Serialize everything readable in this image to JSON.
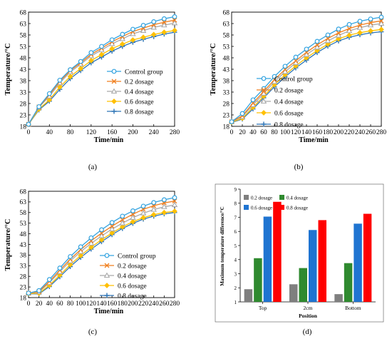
{
  "chart_data": [
    {
      "type": "line",
      "panel_label": "(a)",
      "xlabel": "Time/min",
      "ylabel": "Temperature/°C",
      "xlim": [
        0,
        280
      ],
      "ylim": [
        18,
        68
      ],
      "xticks": [
        0,
        40,
        80,
        120,
        160,
        200,
        240,
        280
      ],
      "yticks": [
        18,
        23,
        28,
        33,
        38,
        43,
        48,
        53,
        58,
        63,
        68
      ],
      "legend_position": "center-right",
      "x": [
        0,
        20,
        40,
        60,
        80,
        100,
        120,
        140,
        160,
        180,
        200,
        220,
        240,
        260,
        280
      ],
      "series": [
        {
          "name": "Control group",
          "marker": "circle",
          "color": "#33a3e0",
          "values": [
            18.9,
            26.6,
            32.3,
            38.2,
            42.8,
            46.4,
            50.3,
            53.0,
            55.9,
            58.3,
            60.5,
            62.2,
            63.8,
            65.1,
            66.0
          ]
        },
        {
          "name": "0.2 dosage",
          "marker": "x",
          "color": "#f07f1f",
          "values": [
            18.9,
            26.5,
            31.8,
            37.7,
            42.4,
            45.8,
            49.5,
            52.2,
            55.0,
            57.3,
            59.5,
            61.0,
            62.5,
            63.6,
            64.5
          ]
        },
        {
          "name": "0.4 dosage",
          "marker": "triangle",
          "color": "#a9a9a9",
          "values": [
            18.9,
            26.3,
            31.2,
            37.0,
            41.8,
            45.2,
            48.8,
            51.4,
            54.1,
            56.3,
            58.5,
            59.9,
            61.3,
            62.3,
            63.2
          ]
        },
        {
          "name": "0.6 dosage",
          "marker": "diamond",
          "color": "#ffc000",
          "values": [
            18.9,
            25.5,
            29.6,
            35.2,
            39.8,
            43.3,
            46.8,
            49.4,
            52.0,
            54.0,
            55.8,
            57.0,
            58.2,
            59.2,
            60.0
          ]
        },
        {
          "name": "0.8 dosage",
          "marker": "plus",
          "color": "#2e75b6",
          "values": [
            18.9,
            25.2,
            29.0,
            34.2,
            38.9,
            42.4,
            45.8,
            48.3,
            50.9,
            53.0,
            54.8,
            56.1,
            57.3,
            58.4,
            59.2
          ]
        }
      ]
    },
    {
      "type": "line",
      "panel_label": "(b)",
      "xlabel": "Time/min",
      "ylabel": "Temperature/°C",
      "xlim": [
        0,
        280
      ],
      "ylim": [
        18,
        68
      ],
      "xticks": [
        0,
        20,
        40,
        60,
        80,
        100,
        120,
        140,
        160,
        180,
        200,
        220,
        240,
        260,
        280
      ],
      "yticks": [
        18,
        23,
        28,
        33,
        38,
        43,
        48,
        53,
        58,
        63,
        68
      ],
      "legend_position": "center-right",
      "x": [
        0,
        20,
        40,
        60,
        80,
        100,
        120,
        140,
        160,
        180,
        200,
        220,
        240,
        260,
        280
      ],
      "series": [
        {
          "name": "Control group",
          "marker": "circle",
          "color": "#33a3e0",
          "values": [
            20.0,
            23.6,
            29.6,
            34.5,
            39.8,
            44.3,
            48.3,
            51.8,
            55.2,
            58.0,
            60.6,
            62.6,
            64.0,
            65.0,
            65.8
          ]
        },
        {
          "name": "0.2 dosage",
          "marker": "x",
          "color": "#f07f1f",
          "values": [
            20.0,
            22.6,
            28.2,
            33.3,
            38.4,
            42.9,
            46.7,
            50.4,
            53.7,
            56.5,
            58.9,
            60.8,
            62.3,
            63.4,
            64.2
          ]
        },
        {
          "name": "0.4 dosage",
          "marker": "triangle",
          "color": "#a9a9a9",
          "values": [
            20.0,
            22.2,
            27.4,
            32.4,
            37.5,
            41.9,
            45.8,
            49.4,
            52.6,
            55.4,
            57.8,
            59.8,
            61.2,
            62.3,
            63.0
          ]
        },
        {
          "name": "0.6 dosage",
          "marker": "diamond",
          "color": "#ffc000",
          "values": [
            19.8,
            21.5,
            26.3,
            31.2,
            36.2,
            40.6,
            44.5,
            48.0,
            51.2,
            54.0,
            56.3,
            57.9,
            59.0,
            59.8,
            60.4
          ]
        },
        {
          "name": "0.8 dosage",
          "marker": "plus",
          "color": "#2e75b6",
          "values": [
            19.7,
            21.2,
            25.6,
            30.5,
            35.3,
            39.7,
            43.6,
            47.0,
            50.3,
            53.1,
            55.4,
            57.0,
            58.1,
            58.9,
            59.4
          ]
        }
      ]
    },
    {
      "type": "line",
      "panel_label": "(c)",
      "xlabel": "Time/min",
      "ylabel": "Temperature/°C",
      "xlim": [
        0,
        280
      ],
      "ylim": [
        18,
        68
      ],
      "xticks": [
        0,
        20,
        40,
        60,
        80,
        100,
        120,
        140,
        160,
        180,
        200,
        220,
        240,
        260,
        280
      ],
      "yticks": [
        18,
        23,
        28,
        33,
        38,
        43,
        48,
        53,
        58,
        63,
        68
      ],
      "legend_position": "bottom-right",
      "x": [
        0,
        20,
        40,
        60,
        80,
        100,
        120,
        140,
        160,
        180,
        200,
        220,
        240,
        260,
        280
      ],
      "series": [
        {
          "name": "Control group",
          "marker": "circle",
          "color": "#33a3e0",
          "values": [
            20.1,
            21.3,
            26.5,
            31.9,
            37.3,
            41.9,
            46.1,
            49.9,
            53.3,
            56.3,
            58.8,
            61.0,
            62.7,
            64.0,
            65.0
          ]
        },
        {
          "name": "0.2 dosage",
          "marker": "x",
          "color": "#f07f1f",
          "values": [
            20.1,
            20.9,
            25.6,
            30.9,
            36.1,
            40.6,
            44.7,
            48.3,
            51.6,
            54.6,
            57.2,
            59.5,
            61.2,
            62.5,
            63.4
          ]
        },
        {
          "name": "0.4 dosage",
          "marker": "triangle",
          "color": "#a9a9a9",
          "values": [
            20.1,
            20.6,
            25.0,
            30.1,
            35.2,
            39.6,
            43.5,
            47.0,
            50.2,
            53.0,
            55.6,
            57.7,
            59.4,
            60.7,
            61.6
          ]
        },
        {
          "name": "0.6 dosage",
          "marker": "diamond",
          "color": "#ffc000",
          "values": [
            19.9,
            20.0,
            23.8,
            28.6,
            33.5,
            37.8,
            41.7,
            45.2,
            48.4,
            51.3,
            53.7,
            55.6,
            57.0,
            58.0,
            58.6
          ]
        },
        {
          "name": "0.8 dosage",
          "marker": "plus",
          "color": "#2e75b6",
          "values": [
            19.8,
            19.7,
            23.2,
            27.8,
            32.6,
            36.9,
            40.8,
            44.3,
            47.6,
            50.5,
            52.9,
            54.9,
            56.3,
            57.4,
            58.0
          ]
        }
      ]
    },
    {
      "type": "bar",
      "panel_label": "(d)",
      "xlabel": "Position",
      "ylabel": "Maximum temperature difference/°C",
      "ylim": [
        1,
        9
      ],
      "yticks": [
        1,
        2,
        3,
        4,
        5,
        6,
        7,
        8,
        9
      ],
      "legend_position": "top-left",
      "categories": [
        "Top",
        "2cm",
        "Bottom"
      ],
      "series": [
        {
          "name": "0.2 dosage",
          "color": "#7f7f7f",
          "values": [
            1.9,
            2.25,
            1.55
          ]
        },
        {
          "name": "0.4 dosage",
          "color": "#2f8a2f",
          "values": [
            4.1,
            3.4,
            3.75
          ]
        },
        {
          "name": "0.6 dosage",
          "color": "#1f74d1",
          "values": [
            7.05,
            6.1,
            6.55
          ]
        },
        {
          "name": "0.8 dosage",
          "color": "#ff0000",
          "values": [
            8.1,
            6.8,
            7.25
          ]
        }
      ]
    }
  ]
}
